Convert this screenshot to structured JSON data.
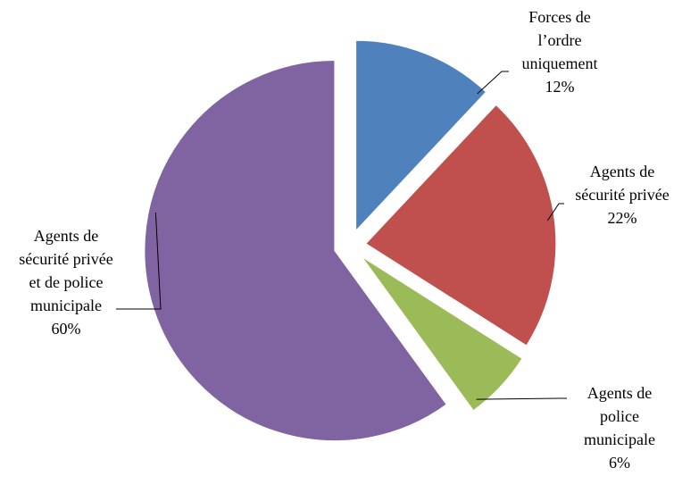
{
  "chart_data": {
    "type": "pie",
    "exploded": true,
    "legend": "none",
    "slices": [
      {
        "label_lines": [
          "Forces de",
          "l’ordre",
          "uniquement"
        ],
        "value": 12,
        "value_label": "12%",
        "color": "#4F81BD"
      },
      {
        "label_lines": [
          "Agents de",
          "sécurité privée"
        ],
        "value": 22,
        "value_label": "22%",
        "color": "#C0504D"
      },
      {
        "label_lines": [
          "Agents de",
          "police",
          "municipale"
        ],
        "value": 6,
        "value_label": "6%",
        "color": "#9BBB59"
      },
      {
        "label_lines": [
          "Agents de",
          "sécurité privée",
          "et de police",
          "municipale"
        ],
        "value": 60,
        "value_label": "60%",
        "color": "#8064A2"
      }
    ]
  }
}
